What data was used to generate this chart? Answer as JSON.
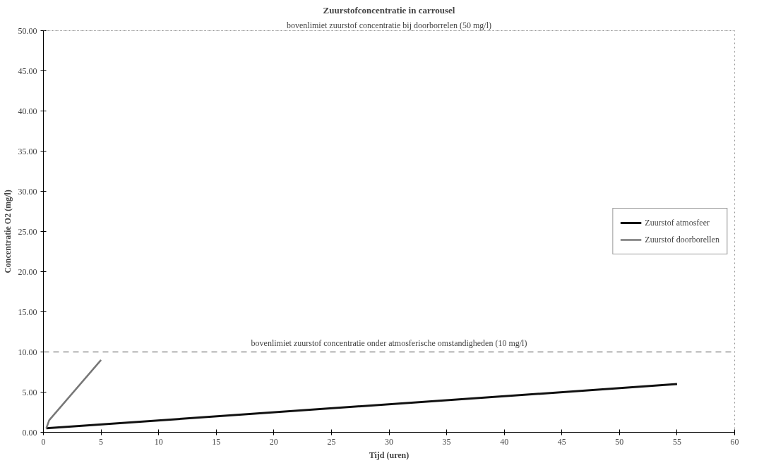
{
  "chart_data": {
    "type": "line",
    "title": "Zuurstofconcentratie in carrousel",
    "xlabel": "Tijd (uren)",
    "ylabel": "Concentratie O2 (mg/l)",
    "series": [
      {
        "name": "Zuurstof atmosfeer",
        "color": "#111111",
        "x": [
          0.25,
          55
        ],
        "values": [
          0.5,
          6.0
        ]
      },
      {
        "name": "Zuurstof doorborellen",
        "color": "#777777",
        "x": [
          0.25,
          0.5,
          5
        ],
        "values": [
          0.5,
          1.5,
          9.0
        ]
      }
    ],
    "xlim": [
      0,
      60
    ],
    "xticks": [
      0,
      5,
      10,
      15,
      20,
      25,
      30,
      35,
      40,
      45,
      50,
      55,
      60
    ],
    "ylim": [
      0,
      50
    ],
    "yticks": [
      {
        "value": 0,
        "label": "0.00"
      },
      {
        "value": 5,
        "label": "5.00"
      },
      {
        "value": 10,
        "label": "10.00"
      },
      {
        "value": 15,
        "label": "15.00"
      },
      {
        "value": 20,
        "label": "20.00"
      },
      {
        "value": 25,
        "label": "25.00"
      },
      {
        "value": 30,
        "label": "30.00"
      },
      {
        "value": 35,
        "label": "35.00"
      },
      {
        "value": 40,
        "label": "40.00"
      },
      {
        "value": 45,
        "label": "45.00"
      },
      {
        "value": 50,
        "label": "50.00"
      }
    ],
    "ref_lines": [
      {
        "axis": "y",
        "value": 10,
        "label": "bovenlimiet zuurstof concentratie onder atmosferische omstandigheden (10 mg/l)",
        "color": "#444444",
        "line_style": "dashed"
      },
      {
        "axis": "y",
        "value": 50,
        "label": "bovenlimiet zuurstof concentratie bij doorborrelen (50 mg/l)",
        "color": "#888888",
        "line_style": "dotted"
      }
    ],
    "grid": false,
    "legend": "right",
    "line_style": "solid",
    "marker": "none"
  }
}
